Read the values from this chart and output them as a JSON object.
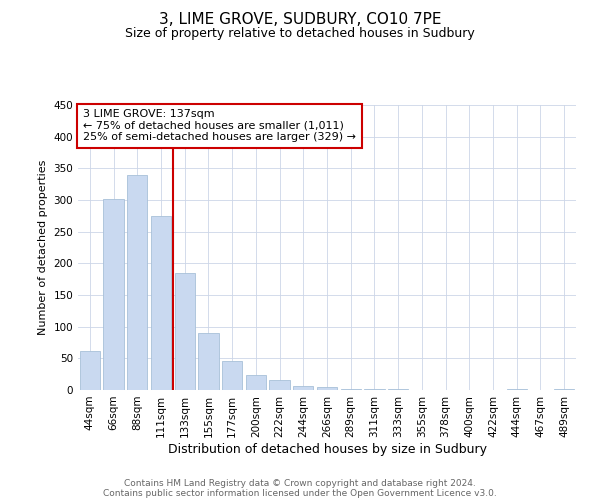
{
  "title": "3, LIME GROVE, SUDBURY, CO10 7PE",
  "subtitle": "Size of property relative to detached houses in Sudbury",
  "xlabel": "Distribution of detached houses by size in Sudbury",
  "ylabel": "Number of detached properties",
  "bar_labels": [
    "44sqm",
    "66sqm",
    "88sqm",
    "111sqm",
    "133sqm",
    "155sqm",
    "177sqm",
    "200sqm",
    "222sqm",
    "244sqm",
    "266sqm",
    "289sqm",
    "311sqm",
    "333sqm",
    "355sqm",
    "378sqm",
    "400sqm",
    "422sqm",
    "444sqm",
    "467sqm",
    "489sqm"
  ],
  "bar_heights": [
    62,
    301,
    340,
    275,
    185,
    90,
    46,
    24,
    16,
    7,
    4,
    2,
    1,
    1,
    0,
    0,
    0,
    0,
    1,
    0,
    1
  ],
  "bar_color": "#c9d9f0",
  "bar_edge_color": "#a8c0d8",
  "vline_color": "#cc0000",
  "annotation_text": "3 LIME GROVE: 137sqm\n← 75% of detached houses are smaller (1,011)\n25% of semi-detached houses are larger (329) →",
  "annotation_box_color": "#ffffff",
  "annotation_box_edge": "#cc0000",
  "ylim": [
    0,
    450
  ],
  "yticks": [
    0,
    50,
    100,
    150,
    200,
    250,
    300,
    350,
    400,
    450
  ],
  "footer_line1": "Contains HM Land Registry data © Crown copyright and database right 2024.",
  "footer_line2": "Contains public sector information licensed under the Open Government Licence v3.0.",
  "background_color": "#ffffff",
  "grid_color": "#ccd6e8",
  "title_fontsize": 11,
  "subtitle_fontsize": 9,
  "xlabel_fontsize": 9,
  "ylabel_fontsize": 8,
  "tick_fontsize": 7.5,
  "footer_fontsize": 6.5,
  "annotation_fontsize": 8
}
